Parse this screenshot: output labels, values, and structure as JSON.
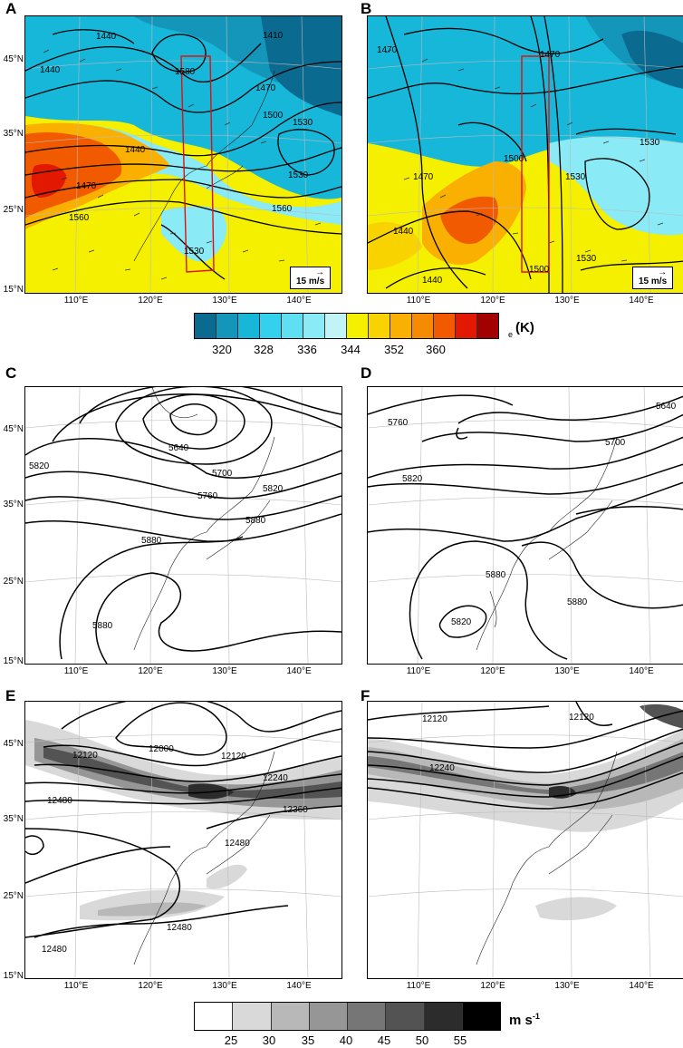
{
  "panels": {
    "A": {
      "letter": "A",
      "ref_label": "15 m/s",
      "contour_labels": [
        "1440",
        "1440",
        "1440",
        "1470",
        "1440",
        "1410",
        "1500",
        "1530",
        "1580",
        "1470",
        "1440",
        "1560",
        "1500",
        "1560",
        "1530",
        "1530",
        "1520"
      ]
    },
    "B": {
      "letter": "B",
      "ref_label": "15 m/s",
      "contour_labels": [
        "1470",
        "1470",
        "1470",
        "1500",
        "1530",
        "1530",
        "1440",
        "1440",
        "1500",
        "1530",
        "1440"
      ]
    },
    "C": {
      "letter": "C",
      "contour_labels": [
        "5640",
        "5700",
        "5760",
        "5820",
        "5820",
        "5880",
        "5880",
        "5880"
      ]
    },
    "D": {
      "letter": "D",
      "contour_labels": [
        "5640",
        "5760",
        "5700",
        "5820",
        "5880",
        "5820",
        "5880"
      ]
    },
    "E": {
      "letter": "E",
      "contour_labels": [
        "12120",
        "12000",
        "12120",
        "12240",
        "12360",
        "12480",
        "12480",
        "12480",
        "12480"
      ]
    },
    "F": {
      "letter": "F",
      "contour_labels": [
        "12120",
        "12120",
        "12240"
      ]
    }
  },
  "axes": {
    "lat_labels": [
      "45°N",
      "35°N",
      "25°N",
      "15°N"
    ],
    "lon_labels": [
      "110°E",
      "120°E",
      "130°E",
      "140°E"
    ]
  },
  "colorbar_theta": {
    "ticks": [
      "320",
      "328",
      "336",
      "344",
      "352",
      "360"
    ],
    "unit_main": "(K)",
    "unit_sub": "e",
    "colors": [
      "#0b6a8f",
      "#1496bb",
      "#17b7d9",
      "#33d1ee",
      "#5ee0f2",
      "#8aeaf5",
      "#c0f4f7",
      "#f5f000",
      "#f8d300",
      "#f9b000",
      "#f68a00",
      "#f25a00",
      "#e21800",
      "#a30000"
    ]
  },
  "colorbar_wind": {
    "ticks": [
      "25",
      "30",
      "35",
      "40",
      "45",
      "50",
      "55"
    ],
    "unit": "m s",
    "unit_sup": "-1",
    "colors": [
      "#ffffff",
      "#d9d9d9",
      "#b8b8b8",
      "#969696",
      "#767676",
      "#535353",
      "#2c2c2c",
      "#000000"
    ]
  }
}
